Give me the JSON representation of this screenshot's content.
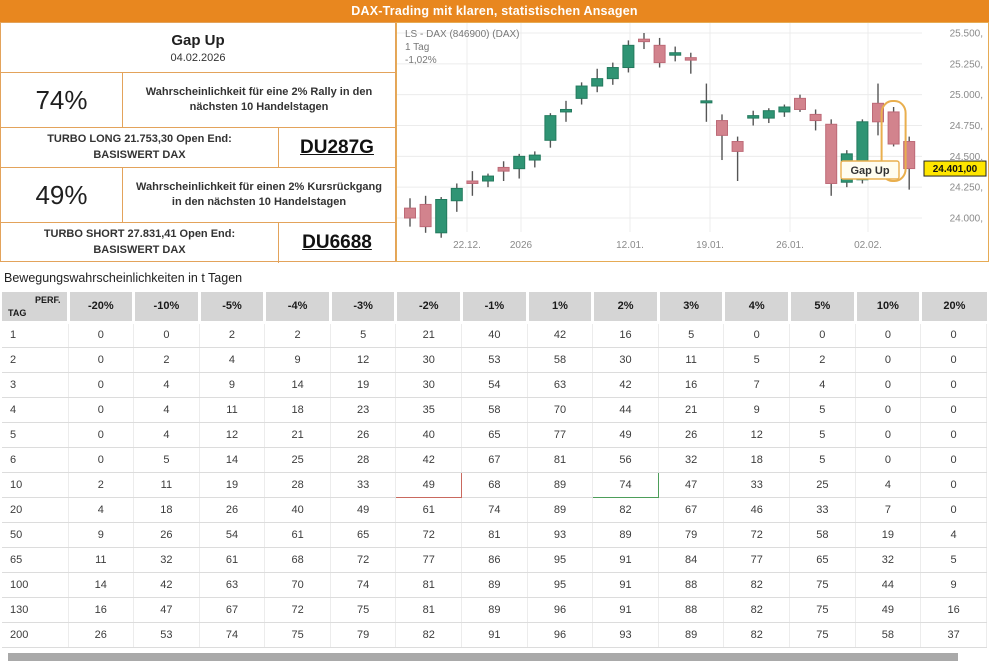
{
  "header": {
    "title": "DAX-Trading mit klaren, statistischen Ansagen"
  },
  "signal_panel": {
    "signal_name": "Gap Up",
    "date": "04.02.2026",
    "long": {
      "probability": "74%",
      "description": "Wahrscheinlichkeit für eine 2% Rally in den nächsten 10 Handelstagen",
      "instrument": "TURBO LONG 21.753,30 Open End:",
      "underlying": "BASISWERT DAX",
      "wkn": "DU287G"
    },
    "short": {
      "probability": "49%",
      "description": "Wahrscheinlichkeit für einen 2% Kursrückgang in den nächsten 10 Handelstagen",
      "instrument": "TURBO SHORT 27.831,41 Open End:",
      "underlying": "BASISWERT DAX",
      "wkn": "DU6688"
    }
  },
  "chart_data": {
    "type": "candlestick",
    "title": "LS - DAX (846900) (DAX)",
    "interval": "1 Tag",
    "change_pct": "-1,02%",
    "last_price": 24401,
    "last_price_label": "24.401,00",
    "annotation_label": "Gap Up",
    "annotation_candle_index": 31,
    "y_ticks": [
      {
        "value": 25500,
        "label": "25.500,"
      },
      {
        "value": 25250,
        "label": "25.250,"
      },
      {
        "value": 25000,
        "label": "25.000,"
      },
      {
        "value": 24750,
        "label": "24.750,"
      },
      {
        "value": 24500,
        "label": "24.500,"
      },
      {
        "value": 24250,
        "label": "24.250,"
      },
      {
        "value": 24000,
        "label": "24.000,"
      }
    ],
    "x_ticks": [
      {
        "label": "22.12.",
        "x": 70
      },
      {
        "label": "2026",
        "x": 124
      },
      {
        "label": "12.01.",
        "x": 233
      },
      {
        "label": "19.01.",
        "x": 313
      },
      {
        "label": "26.01.",
        "x": 393
      },
      {
        "label": "02.02.",
        "x": 471
      }
    ],
    "candles": [
      [
        24080,
        24160,
        23930,
        24000
      ],
      [
        24110,
        24180,
        23880,
        23930
      ],
      [
        23880,
        24170,
        23840,
        24150
      ],
      [
        24140,
        24280,
        24050,
        24240
      ],
      [
        24300,
        24380,
        24180,
        24280
      ],
      [
        24300,
        24360,
        24250,
        24340
      ],
      [
        24410,
        24460,
        24300,
        24380
      ],
      [
        24400,
        24520,
        24320,
        24500
      ],
      [
        24470,
        24540,
        24410,
        24510
      ],
      [
        24630,
        24850,
        24570,
        24830
      ],
      [
        24860,
        24950,
        24780,
        24880
      ],
      [
        24970,
        25100,
        24920,
        25070
      ],
      [
        25070,
        25210,
        25020,
        25130
      ],
      [
        25130,
        25260,
        25080,
        25220
      ],
      [
        25220,
        25440,
        25180,
        25400
      ],
      [
        25450,
        25500,
        25370,
        25430
      ],
      [
        25400,
        25460,
        25220,
        25260
      ],
      [
        25320,
        25390,
        25270,
        25340
      ],
      [
        25300,
        25340,
        25170,
        25280
      ],
      [
        24940,
        25090,
        24780,
        24950
      ],
      [
        24790,
        24840,
        24470,
        24670
      ],
      [
        24620,
        24660,
        24300,
        24540
      ],
      [
        24810,
        24870,
        24750,
        24830
      ],
      [
        24810,
        24890,
        24770,
        24870
      ],
      [
        24860,
        24920,
        24820,
        24900
      ],
      [
        24970,
        25000,
        24860,
        24880
      ],
      [
        24840,
        24880,
        24710,
        24790
      ],
      [
        24760,
        24800,
        24180,
        24280
      ],
      [
        24290,
        24550,
        24250,
        24520
      ],
      [
        24310,
        24800,
        24280,
        24780
      ],
      [
        24930,
        25090,
        24670,
        24780
      ],
      [
        24860,
        24900,
        24580,
        24600
      ],
      [
        24620,
        24660,
        24230,
        24401
      ]
    ],
    "colors": {
      "up": "#2f9474",
      "up_stroke": "#247a5e",
      "down": "#d2838d",
      "down_stroke": "#bd6a77",
      "wick": "#555555",
      "grid": "#ececec",
      "axis_text": "#8a8a8a",
      "annotation": "#e9af4e",
      "price_tag_bg": "#ffe600",
      "price_tag_text": "#111111",
      "label_bg": "#fffdf0",
      "label_text": "#333333"
    }
  },
  "table": {
    "title": "Bewegungswahrscheinlichkeiten in t Tagen",
    "corner_top": "PERF.",
    "corner_bottom": "TAG",
    "columns": [
      "-20%",
      "-10%",
      "-5%",
      "-4%",
      "-3%",
      "-2%",
      "-1%",
      "1%",
      "2%",
      "3%",
      "4%",
      "5%",
      "10%",
      "20%"
    ],
    "rows": [
      {
        "tag": "1",
        "values": [
          0,
          0,
          2,
          2,
          5,
          21,
          40,
          42,
          16,
          5,
          0,
          0,
          0,
          0
        ]
      },
      {
        "tag": "2",
        "values": [
          0,
          2,
          4,
          9,
          12,
          30,
          53,
          58,
          30,
          11,
          5,
          2,
          0,
          0
        ]
      },
      {
        "tag": "3",
        "values": [
          0,
          4,
          9,
          14,
          19,
          30,
          54,
          63,
          42,
          16,
          7,
          4,
          0,
          0
        ]
      },
      {
        "tag": "4",
        "values": [
          0,
          4,
          11,
          18,
          23,
          35,
          58,
          70,
          44,
          21,
          9,
          5,
          0,
          0
        ]
      },
      {
        "tag": "5",
        "values": [
          0,
          4,
          12,
          21,
          26,
          40,
          65,
          77,
          49,
          26,
          12,
          5,
          0,
          0
        ]
      },
      {
        "tag": "6",
        "values": [
          0,
          5,
          14,
          25,
          28,
          42,
          67,
          81,
          56,
          32,
          18,
          5,
          0,
          0
        ]
      },
      {
        "tag": "10",
        "values": [
          2,
          11,
          19,
          28,
          33,
          49,
          68,
          89,
          74,
          47,
          33,
          25,
          4,
          0
        ]
      },
      {
        "tag": "20",
        "values": [
          4,
          18,
          26,
          40,
          49,
          61,
          74,
          89,
          82,
          67,
          46,
          33,
          7,
          0
        ]
      },
      {
        "tag": "50",
        "values": [
          9,
          26,
          54,
          61,
          65,
          72,
          81,
          93,
          89,
          79,
          72,
          58,
          19,
          4
        ]
      },
      {
        "tag": "65",
        "values": [
          11,
          32,
          61,
          68,
          72,
          77,
          86,
          95,
          91,
          84,
          77,
          65,
          32,
          5
        ]
      },
      {
        "tag": "100",
        "values": [
          14,
          42,
          63,
          70,
          74,
          81,
          89,
          95,
          91,
          88,
          82,
          75,
          44,
          9
        ]
      },
      {
        "tag": "130",
        "values": [
          16,
          47,
          67,
          72,
          75,
          81,
          89,
          96,
          91,
          88,
          82,
          75,
          49,
          16
        ]
      },
      {
        "tag": "200",
        "values": [
          26,
          53,
          74,
          75,
          79,
          82,
          91,
          96,
          93,
          89,
          82,
          75,
          58,
          37
        ]
      }
    ],
    "highlights": [
      {
        "tag": "10",
        "column": "-2%",
        "style": "red"
      },
      {
        "tag": "10",
        "column": "2%",
        "style": "green"
      }
    ]
  }
}
